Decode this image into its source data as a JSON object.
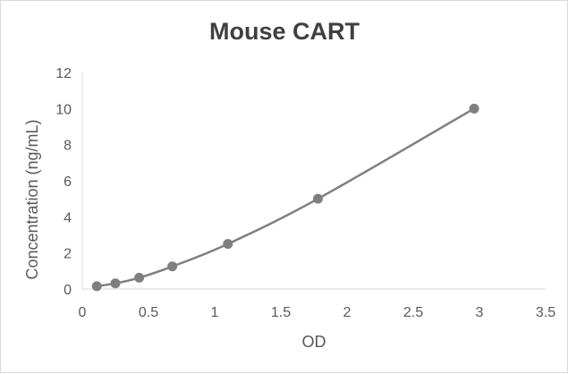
{
  "chart_data": {
    "type": "scatter",
    "title": "Mouse CART",
    "xlabel": "OD",
    "ylabel": "Concentration (ng/mL)",
    "xlim": [
      0,
      3.5
    ],
    "ylim": [
      0,
      12
    ],
    "x_ticks": [
      "0",
      "0.5",
      "1",
      "1.5",
      "2",
      "2.5",
      "3",
      "3.5"
    ],
    "y_ticks": [
      "0",
      "2",
      "4",
      "6",
      "8",
      "10",
      "12"
    ],
    "grid": false,
    "legend": "none",
    "series": [
      {
        "x": [
          0.11,
          0.25,
          0.43,
          0.68,
          1.1,
          1.78,
          2.96
        ],
        "y": [
          0.156,
          0.313,
          0.625,
          1.25,
          2.5,
          5,
          10
        ],
        "smooth": true,
        "marker": "circle"
      }
    ],
    "colors": {
      "series": "#7f7f7f",
      "axis": "#d9d9d9",
      "text": "#595959",
      "title": "#404040"
    }
  }
}
